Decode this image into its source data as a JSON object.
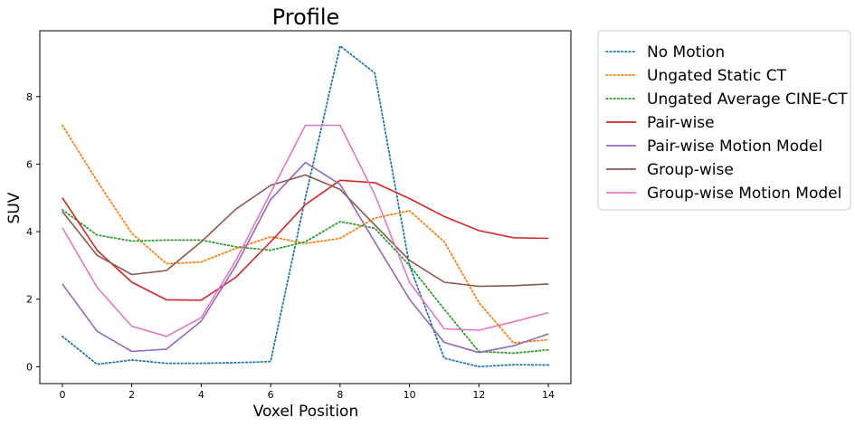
{
  "chart_data": {
    "type": "line",
    "title": "Profile",
    "xlabel": "Voxel Position",
    "ylabel": "SUV",
    "xlim": [
      -0.65,
      14.65
    ],
    "ylim": [
      -0.5,
      9.95
    ],
    "xticks": [
      0,
      2,
      4,
      6,
      8,
      10,
      12,
      14
    ],
    "yticks": [
      0,
      2,
      4,
      6,
      8
    ],
    "grid": false,
    "legend_placement": "outside-right",
    "x": [
      0,
      1,
      2,
      3,
      4,
      5,
      6,
      7,
      8,
      9,
      10,
      11,
      12,
      13,
      14
    ],
    "series": [
      {
        "name": "No Motion",
        "color": "#1f77b4",
        "style": "dotted",
        "values": [
          0.9,
          0.07,
          0.2,
          0.1,
          0.1,
          0.12,
          0.15,
          5.0,
          9.5,
          8.7,
          3.0,
          0.25,
          0.0,
          0.06,
          0.05
        ]
      },
      {
        "name": "Ungated Static CT",
        "color": "#ff7f0e",
        "style": "dotted",
        "values": [
          7.15,
          5.5,
          3.95,
          3.05,
          3.1,
          3.5,
          3.85,
          3.65,
          3.8,
          4.4,
          4.62,
          3.7,
          1.9,
          0.7,
          0.8
        ]
      },
      {
        "name": "Ungated Average CINE-CT",
        "color": "#2ca02c",
        "style": "dotted",
        "values": [
          4.65,
          3.9,
          3.72,
          3.75,
          3.75,
          3.55,
          3.45,
          3.7,
          4.3,
          4.1,
          3.0,
          1.7,
          0.45,
          0.4,
          0.5
        ]
      },
      {
        "name": "Pair-wise",
        "color": "#d62728",
        "style": "solid",
        "values": [
          5.0,
          3.45,
          2.5,
          1.98,
          1.97,
          2.65,
          3.7,
          4.8,
          5.52,
          5.45,
          4.98,
          4.45,
          4.03,
          3.82,
          3.8
        ]
      },
      {
        "name": "Pair-wise Motion Model",
        "color": "#9467bd",
        "style": "solid",
        "values": [
          2.45,
          1.05,
          0.45,
          0.52,
          1.35,
          3.0,
          4.95,
          6.05,
          5.4,
          3.7,
          2.0,
          0.72,
          0.42,
          0.62,
          0.97
        ]
      },
      {
        "name": "Group-wise",
        "color": "#8c564b",
        "style": "solid",
        "values": [
          4.6,
          3.3,
          2.73,
          2.85,
          3.7,
          4.67,
          5.37,
          5.68,
          5.25,
          4.2,
          3.15,
          2.5,
          2.38,
          2.4,
          2.45
        ]
      },
      {
        "name": "Group-wise Motion Model",
        "color": "#e377c2",
        "style": "solid",
        "values": [
          4.12,
          2.35,
          1.2,
          0.9,
          1.45,
          3.15,
          5.15,
          7.15,
          7.15,
          5.1,
          2.5,
          1.12,
          1.08,
          1.33,
          1.6
        ]
      }
    ]
  }
}
